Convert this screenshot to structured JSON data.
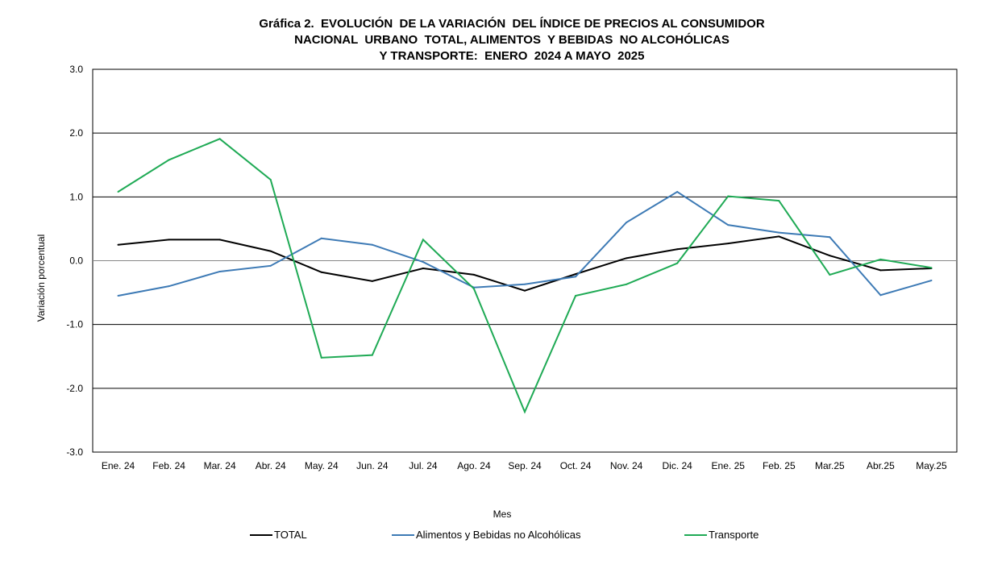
{
  "chart_data": {
    "type": "line",
    "title": [
      "Gráfica 2.  EVOLUCIÓN  DE LA VARIACIÓN  DEL ÍNDICE DE PRECIOS AL CONSUMIDOR",
      "NACIONAL  URBANO  TOTAL, ALIMENTOS  Y BEBIDAS  NO ALCOHÓLICAS",
      "Y TRANSPORTE:  ENERO  2024 A MAYO  2025"
    ],
    "xlabel": "Mes",
    "ylabel": "Variación  porcentual",
    "ylim": [
      -3.0,
      3.0
    ],
    "yticks": [
      "3.0",
      "2.0",
      "1.0",
      "0.0",
      "-1.0",
      "-2.0",
      "-3.0"
    ],
    "grid": true,
    "legend_position": "bottom",
    "categories": [
      "Ene. 24",
      "Feb. 24",
      "Mar. 24",
      "Abr. 24",
      "May. 24",
      "Jun. 24",
      "Jul. 24",
      "Ago. 24",
      "Sep. 24",
      "Oct. 24",
      "Nov. 24",
      "Dic. 24",
      "Ene. 25",
      "Feb. 25",
      "Mar.25",
      "Abr.25",
      "May.25"
    ],
    "series": [
      {
        "name": "TOTAL",
        "color": "#000000",
        "values": [
          0.25,
          0.33,
          0.33,
          0.15,
          -0.18,
          -0.32,
          -0.12,
          -0.22,
          -0.47,
          -0.21,
          0.04,
          0.18,
          0.27,
          0.38,
          0.08,
          -0.15,
          -0.12
        ]
      },
      {
        "name": "Alimentos y Bebidas no Alcohólicas",
        "color": "#3d7ab5",
        "values": [
          -0.55,
          -0.4,
          -0.17,
          -0.08,
          0.35,
          0.25,
          -0.02,
          -0.42,
          -0.37,
          -0.25,
          0.6,
          1.08,
          0.56,
          0.44,
          0.37,
          -0.54,
          -0.31
        ]
      },
      {
        "name": "Transporte",
        "color": "#1faa55",
        "values": [
          1.08,
          1.58,
          1.91,
          1.27,
          -1.52,
          -1.48,
          0.33,
          -0.44,
          -2.37,
          -0.55,
          -0.37,
          -0.04,
          1.01,
          0.94,
          -0.22,
          0.02,
          -0.11
        ]
      }
    ]
  }
}
